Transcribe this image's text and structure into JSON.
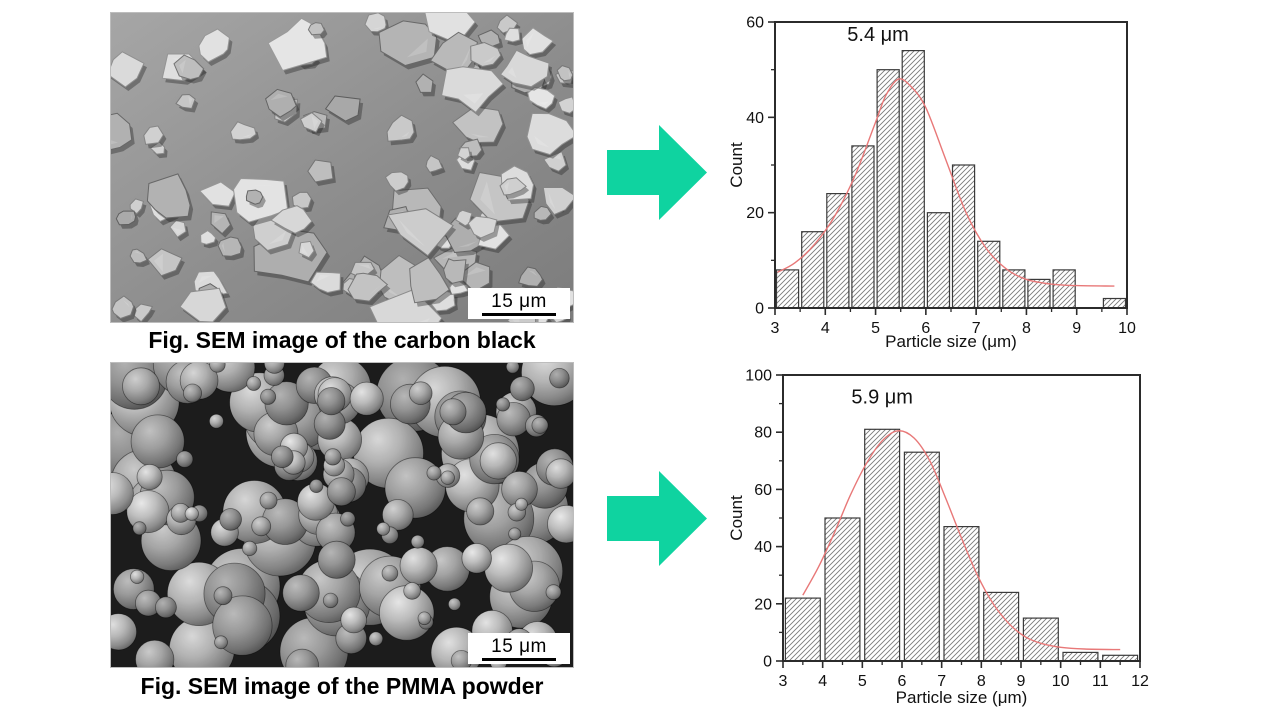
{
  "page": {
    "background": "#ffffff"
  },
  "figures": [
    {
      "caption": "Fig. SEM image of the carbon black",
      "scale_bar_label": "15 μm",
      "description": "SEM micrograph of irregular angular carbon black particles"
    },
    {
      "caption": "Fig. SEM image of the PMMA powder",
      "scale_bar_label": "15 μm",
      "description": "SEM micrograph of spherical PMMA powder particles"
    }
  ],
  "arrows": {
    "color": "#0fd3a0"
  },
  "chart_data": [
    {
      "type": "bar",
      "title": "",
      "annotation": "5.4 μm",
      "annotation_xy": [
        5.05,
        56
      ],
      "xlabel": "Particle size (μm)",
      "ylabel": "Count",
      "xlim": [
        3,
        10
      ],
      "ylim": [
        0,
        60
      ],
      "x_ticks": [
        3,
        4,
        5,
        6,
        7,
        8,
        9,
        10
      ],
      "y_ticks": [
        0,
        20,
        40,
        60
      ],
      "x_minor_step": 0.5,
      "y_minor_step": 10,
      "grid": false,
      "bin_width": 0.5,
      "bins_start": [
        3.0,
        3.5,
        4.0,
        4.5,
        5.0,
        5.5,
        6.0,
        6.5,
        7.0,
        7.5,
        8.0,
        8.5,
        9.0,
        9.5
      ],
      "values": [
        8,
        16,
        24,
        34,
        50,
        54,
        20,
        30,
        14,
        8,
        6,
        8,
        0,
        2
      ],
      "fit_curve": {
        "color": "#e87878",
        "points": [
          [
            3.05,
            7.5
          ],
          [
            3.4,
            9.5
          ],
          [
            3.8,
            13.5
          ],
          [
            4.2,
            19.5
          ],
          [
            4.6,
            28
          ],
          [
            5.0,
            39
          ],
          [
            5.2,
            44.5
          ],
          [
            5.45,
            48
          ],
          [
            5.7,
            46.5
          ],
          [
            6.0,
            42
          ],
          [
            6.4,
            31
          ],
          [
            6.8,
            20
          ],
          [
            7.2,
            12.5
          ],
          [
            7.6,
            8.2
          ],
          [
            8.0,
            6.0
          ],
          [
            8.5,
            5.0
          ],
          [
            9.0,
            4.7
          ],
          [
            9.75,
            4.6
          ]
        ]
      }
    },
    {
      "type": "bar",
      "title": "",
      "annotation": "5.9 μm",
      "annotation_xy": [
        5.5,
        90
      ],
      "xlabel": "Particle size (μm)",
      "ylabel": "Count",
      "xlim": [
        3,
        12
      ],
      "ylim": [
        0,
        100
      ],
      "x_ticks": [
        3,
        4,
        5,
        6,
        7,
        8,
        9,
        10,
        11,
        12
      ],
      "y_ticks": [
        0,
        20,
        40,
        60,
        80,
        100
      ],
      "x_minor_step": 0.5,
      "y_minor_step": 10,
      "grid": false,
      "bin_width": 1,
      "bins_start": [
        3,
        4,
        5,
        6,
        7,
        8,
        9,
        10,
        11
      ],
      "values": [
        22,
        50,
        81,
        73,
        47,
        24,
        15,
        3,
        2
      ],
      "fit_curve": {
        "color": "#e87878",
        "points": [
          [
            3.5,
            23
          ],
          [
            3.9,
            33
          ],
          [
            4.3,
            45
          ],
          [
            4.7,
            58
          ],
          [
            5.1,
            69
          ],
          [
            5.5,
            77
          ],
          [
            5.9,
            80.5
          ],
          [
            6.3,
            78
          ],
          [
            6.7,
            70
          ],
          [
            7.1,
            57
          ],
          [
            7.5,
            43
          ],
          [
            7.9,
            30
          ],
          [
            8.3,
            20
          ],
          [
            8.7,
            13
          ],
          [
            9.1,
            8.5
          ],
          [
            9.5,
            6.2
          ],
          [
            10.0,
            4.8
          ],
          [
            10.6,
            4.2
          ],
          [
            11.5,
            4.0
          ]
        ]
      }
    }
  ]
}
